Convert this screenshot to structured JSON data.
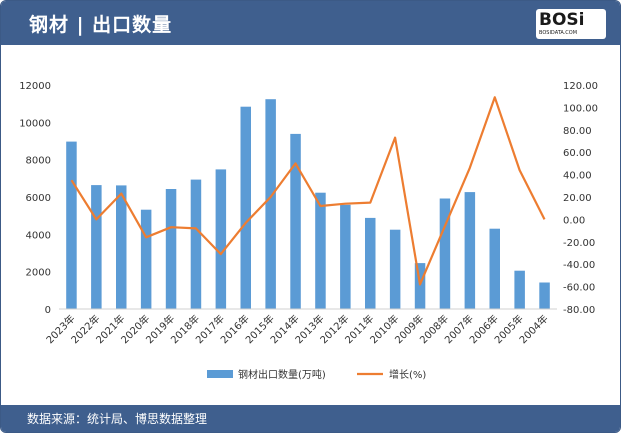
{
  "header": {
    "title": "钢材 | 出口数量"
  },
  "logo": {
    "mark": "BOSi",
    "url": "BOSIDATA.COM"
  },
  "footer": {
    "source": "数据来源：统计局、博思数据整理"
  },
  "colors": {
    "bar": "#5b9bd5",
    "line": "#ed7d31",
    "header": "#3f5f8e"
  },
  "chart_data": {
    "type": "bar",
    "categories": [
      "2023年",
      "2022年",
      "2021年",
      "2020年",
      "2019年",
      "2018年",
      "2017年",
      "2016年",
      "2015年",
      "2014年",
      "2013年",
      "2012年",
      "2011年",
      "2010年",
      "2009年",
      "2008年",
      "2007年",
      "2006年",
      "2005年",
      "2004年"
    ],
    "series": [
      {
        "name": "钢材出口数量(万吨)",
        "type": "bar",
        "axis": "left",
        "values": [
          8970,
          6640,
          6620,
          5320,
          6430,
          6930,
          7480,
          10840,
          11240,
          9380,
          6230,
          5580,
          4880,
          4250,
          2460,
          5920,
          6260,
          4300,
          2050,
          1420
        ]
      },
      {
        "name": "增长(%)",
        "type": "line",
        "axis": "right",
        "values": [
          35,
          0,
          23,
          -16,
          -7,
          -8,
          -31,
          -3,
          20,
          50,
          12,
          14,
          15,
          73,
          -58,
          -6,
          46,
          109,
          44,
          0
        ]
      }
    ],
    "yAxisLeft": {
      "min": 0,
      "max": 12000,
      "step": 2000,
      "tickLabels": [
        "0",
        "2000",
        "4000",
        "6000",
        "8000",
        "10000",
        "12000"
      ]
    },
    "yAxisRight": {
      "min": -80,
      "max": 120,
      "step": 20,
      "tickLabels": [
        "-80.00",
        "-60.00",
        "-40.00",
        "-20.00",
        "0.00",
        "20.00",
        "40.00",
        "60.00",
        "80.00",
        "100.00",
        "120.00"
      ]
    },
    "legend": {
      "position": "bottom"
    },
    "grid": false
  }
}
